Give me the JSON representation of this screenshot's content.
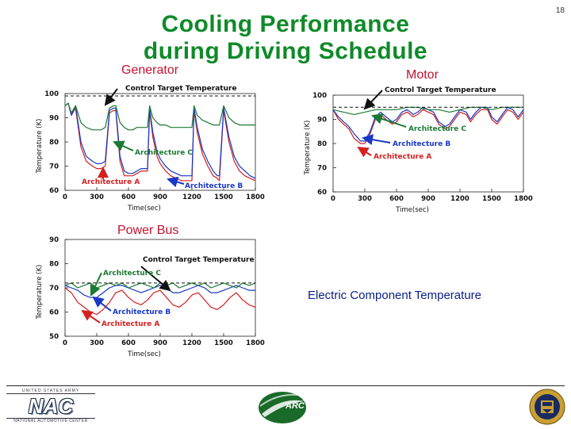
{
  "slide": {
    "page_number": "18",
    "title_line1": "Cooling Performance",
    "title_line2": "during Driving Schedule",
    "label_generator": "Generator",
    "label_motor": "Motor",
    "label_powerbus": "Power Bus",
    "caption": "Electric Component Temperature"
  },
  "footer": {
    "nac_top": "UNITED STATES ARMY",
    "nac_logo": "NAC",
    "nac_bottom": "NATIONAL AUTOMOTIVE CENTER",
    "arc_logo": "ARC"
  },
  "colors": {
    "arch_a": "#d42020",
    "arch_b": "#1838c8",
    "arch_c": "#1c7a32",
    "control": "#111111",
    "title": "#0f8a28"
  },
  "chart_data": [
    {
      "name": "Generator",
      "type": "line",
      "xlabel": "Time(sec)",
      "ylabel": "Temperature (K)",
      "xlim": [
        0,
        1800
      ],
      "ylim": [
        60,
        100
      ],
      "xticks": [
        0,
        300,
        600,
        900,
        1200,
        1500,
        1800
      ],
      "yticks": [
        60,
        70,
        80,
        90,
        100
      ],
      "annotations": {
        "control": "Control Target Temperature",
        "arch_c": "Architecture C",
        "arch_a": "Architecture A",
        "arch_b": "Architecture B"
      },
      "series": [
        {
          "name": "Architecture A",
          "color_key": "arch_a",
          "x": [
            0,
            30,
            60,
            100,
            150,
            200,
            260,
            300,
            340,
            380,
            420,
            460,
            480,
            520,
            560,
            600,
            640,
            680,
            720,
            780,
            800,
            830,
            870,
            900,
            950,
            1000,
            1050,
            1100,
            1150,
            1200,
            1220,
            1250,
            1300,
            1350,
            1400,
            1440,
            1460,
            1500,
            1550,
            1600,
            1650,
            1700,
            1750,
            1800
          ],
          "values": [
            95,
            96,
            91,
            94,
            78,
            72,
            70,
            69,
            69,
            70,
            92,
            93,
            93,
            72,
            66,
            66,
            66,
            67,
            68,
            68,
            93,
            82,
            74,
            71,
            68,
            66,
            65,
            64,
            64,
            64,
            93,
            84,
            75,
            70,
            66,
            65,
            64,
            93,
            80,
            72,
            68,
            66,
            65,
            64
          ]
        },
        {
          "name": "Architecture B",
          "color_key": "arch_b",
          "x": [
            0,
            30,
            60,
            100,
            150,
            200,
            260,
            300,
            340,
            380,
            420,
            460,
            480,
            520,
            560,
            600,
            640,
            680,
            720,
            780,
            800,
            830,
            870,
            900,
            950,
            1000,
            1050,
            1100,
            1150,
            1200,
            1220,
            1250,
            1300,
            1350,
            1400,
            1440,
            1460,
            1500,
            1550,
            1600,
            1650,
            1700,
            1750,
            1800
          ],
          "values": [
            95,
            96,
            91,
            95,
            80,
            74,
            72,
            71,
            71,
            72,
            93,
            94,
            94,
            74,
            68,
            67,
            67,
            68,
            69,
            69,
            94,
            84,
            76,
            73,
            70,
            68,
            67,
            66,
            66,
            66,
            94,
            86,
            77,
            72,
            68,
            66,
            66,
            94,
            82,
            74,
            70,
            68,
            66,
            65
          ]
        },
        {
          "name": "Architecture C",
          "color_key": "arch_c",
          "x": [
            0,
            30,
            60,
            100,
            150,
            200,
            260,
            300,
            340,
            380,
            420,
            460,
            480,
            520,
            560,
            600,
            640,
            680,
            720,
            780,
            800,
            830,
            870,
            900,
            950,
            1000,
            1050,
            1100,
            1150,
            1200,
            1220,
            1250,
            1300,
            1350,
            1400,
            1440,
            1460,
            1500,
            1550,
            1600,
            1650,
            1700,
            1750,
            1800
          ],
          "values": [
            95,
            96,
            92,
            95,
            88,
            86,
            85,
            85,
            85,
            86,
            94,
            95,
            95,
            88,
            86,
            85,
            85,
            86,
            86,
            86,
            95,
            90,
            88,
            87,
            87,
            86,
            86,
            86,
            86,
            86,
            95,
            91,
            89,
            88,
            87,
            87,
            87,
            95,
            90,
            88,
            87,
            87,
            87,
            87
          ]
        },
        {
          "name": "Control Target Temperature",
          "color_key": "control",
          "x": [
            0,
            1800
          ],
          "values": [
            99,
            99
          ]
        }
      ]
    },
    {
      "name": "Motor",
      "type": "line",
      "xlabel": "Time(sec)",
      "ylabel": "Temperature (K)",
      "xlim": [
        0,
        1800
      ],
      "ylim": [
        60,
        100
      ],
      "xticks": [
        0,
        300,
        600,
        900,
        1200,
        1500,
        1800
      ],
      "yticks": [
        60,
        70,
        80,
        90,
        100
      ],
      "annotations": {
        "control": "Control Target Temperature",
        "arch_c": "Architecture C",
        "arch_b": "Architecture B",
        "arch_a": "Architecture A"
      },
      "series": [
        {
          "name": "Architecture A",
          "color_key": "arch_a",
          "x": [
            0,
            50,
            100,
            150,
            200,
            260,
            300,
            350,
            400,
            450,
            500,
            560,
            600,
            650,
            700,
            760,
            800,
            850,
            900,
            950,
            1000,
            1060,
            1100,
            1150,
            1200,
            1260,
            1300,
            1350,
            1400,
            1460,
            1500,
            1550,
            1600,
            1650,
            1700,
            1750,
            1800
          ],
          "values": [
            94,
            90,
            88,
            86,
            82,
            80,
            80,
            84,
            90,
            92,
            90,
            88,
            89,
            92,
            93,
            91,
            92,
            94,
            93,
            92,
            88,
            86,
            87,
            90,
            93,
            92,
            89,
            92,
            94,
            94,
            90,
            88,
            91,
            94,
            93,
            90,
            93
          ]
        },
        {
          "name": "Architecture B",
          "color_key": "arch_b",
          "x": [
            0,
            50,
            100,
            150,
            200,
            260,
            300,
            350,
            400,
            450,
            500,
            560,
            600,
            650,
            700,
            760,
            800,
            850,
            900,
            950,
            1000,
            1060,
            1100,
            1150,
            1200,
            1260,
            1300,
            1350,
            1400,
            1460,
            1500,
            1550,
            1600,
            1650,
            1700,
            1750,
            1800
          ],
          "values": [
            94,
            91,
            89,
            87,
            84,
            81,
            81,
            85,
            91,
            93,
            91,
            89,
            90,
            93,
            94,
            92,
            93,
            95,
            94,
            93,
            89,
            87,
            88,
            91,
            94,
            93,
            90,
            93,
            95,
            95,
            91,
            89,
            92,
            95,
            94,
            91,
            94
          ]
        },
        {
          "name": "Architecture C",
          "color_key": "arch_c",
          "x": [
            0,
            100,
            200,
            300,
            400,
            500,
            600,
            700,
            800,
            900,
            1000,
            1100,
            1200,
            1300,
            1400,
            1500,
            1600,
            1700,
            1800
          ],
          "values": [
            94,
            93,
            92,
            93,
            94,
            94,
            94,
            95,
            95,
            94,
            94,
            93,
            94,
            95,
            95,
            94,
            95,
            95,
            95
          ]
        },
        {
          "name": "Control Target Temperature",
          "color_key": "control",
          "x": [
            0,
            1800
          ],
          "values": [
            95,
            95
          ]
        }
      ]
    },
    {
      "name": "Power Bus",
      "type": "line",
      "xlabel": "Time(sec)",
      "ylabel": "Temperature (K)",
      "xlim": [
        0,
        1800
      ],
      "ylim": [
        50,
        90
      ],
      "xticks": [
        0,
        300,
        600,
        900,
        1200,
        1500,
        1800
      ],
      "yticks": [
        50,
        60,
        70,
        80,
        90
      ],
      "annotations": {
        "control": "Control Target Temperature",
        "arch_c": "Architecture C",
        "arch_b": "Architecture B",
        "arch_a": "Architecture A"
      },
      "series": [
        {
          "name": "Architecture A",
          "color_key": "arch_a",
          "x": [
            0,
            60,
            120,
            180,
            240,
            300,
            360,
            420,
            480,
            540,
            600,
            660,
            720,
            780,
            840,
            900,
            960,
            1020,
            1080,
            1140,
            1200,
            1260,
            1320,
            1380,
            1440,
            1500,
            1560,
            1620,
            1680,
            1740,
            1800
          ],
          "values": [
            70,
            68,
            64,
            62,
            60,
            59,
            61,
            64,
            68,
            69,
            66,
            64,
            63,
            65,
            68,
            69,
            66,
            63,
            62,
            64,
            67,
            68,
            65,
            62,
            61,
            63,
            66,
            68,
            65,
            63,
            62
          ]
        },
        {
          "name": "Architecture B",
          "color_key": "arch_b",
          "x": [
            0,
            60,
            120,
            180,
            240,
            300,
            360,
            420,
            480,
            540,
            600,
            660,
            720,
            780,
            840,
            900,
            960,
            1020,
            1080,
            1140,
            1200,
            1260,
            1320,
            1380,
            1440,
            1500,
            1560,
            1620,
            1680,
            1740,
            1800
          ],
          "values": [
            71,
            70,
            69,
            67,
            66,
            66,
            68,
            70,
            71,
            71,
            70,
            69,
            68,
            69,
            70,
            71,
            70,
            68,
            68,
            69,
            70,
            71,
            70,
            68,
            68,
            69,
            70,
            71,
            70,
            69,
            69
          ]
        },
        {
          "name": "Architecture C",
          "color_key": "arch_c",
          "x": [
            0,
            60,
            120,
            180,
            240,
            300,
            360,
            420,
            480,
            540,
            600,
            660,
            720,
            780,
            840,
            900,
            960,
            1020,
            1080,
            1140,
            1200,
            1260,
            1320,
            1380,
            1440,
            1500,
            1560,
            1620,
            1680,
            1740,
            1800
          ],
          "values": [
            71,
            72,
            70,
            71,
            72,
            70,
            71,
            72,
            71,
            72,
            70,
            71,
            72,
            71,
            70,
            72,
            71,
            72,
            70,
            71,
            72,
            71,
            72,
            70,
            71,
            72,
            71,
            70,
            72,
            71,
            72
          ]
        },
        {
          "name": "Control Target Temperature",
          "color_key": "control",
          "x": [
            0,
            1800
          ],
          "values": [
            72,
            72
          ]
        }
      ]
    }
  ]
}
